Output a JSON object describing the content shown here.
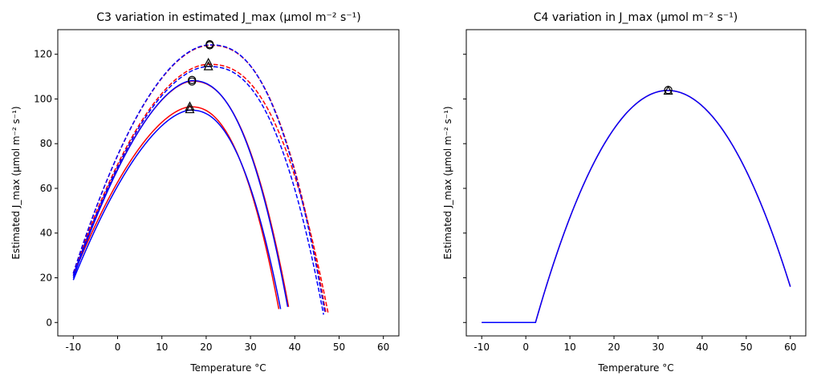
{
  "figure": {
    "left_panel_title": "C3 variation in estimated J_max  (µmol m⁻² s⁻¹)",
    "right_panel_title": "C4 variation in J_max  (µmol m⁻² s⁻¹)"
  },
  "chart_data": [
    {
      "type": "line",
      "title": "C3 variation in estimated J_max  (µmol m⁻² s⁻¹)",
      "xlabel": "Temperature °C",
      "ylabel": "Estimated J_max  (µmol m⁻² s⁻¹)",
      "xlim": [
        -13.5,
        63.5
      ],
      "ylim": [
        -6,
        131
      ],
      "xticks": [
        -10,
        0,
        10,
        20,
        30,
        40,
        50,
        60
      ],
      "yticks": [
        0,
        20,
        40,
        60,
        80,
        100,
        120
      ],
      "grid": false,
      "series": [
        {
          "color": "#ff0000",
          "dash": "solid",
          "peak": [
            16.5,
            96.5
          ],
          "x_start": -10,
          "x_end": 36.4,
          "y_start": 21,
          "y_end": 6,
          "exp": 1.7
        },
        {
          "color": "#0000ff",
          "dash": "solid",
          "peak": [
            16.5,
            95.0
          ],
          "x_start": -10,
          "x_end": 36.8,
          "y_start": 19,
          "y_end": 6,
          "exp": 1.7
        },
        {
          "color": "#ff0000",
          "dash": "solid",
          "peak": [
            16.8,
            108.0
          ],
          "x_start": -10,
          "x_end": 38.6,
          "y_start": 21,
          "y_end": 7,
          "exp": 1.7
        },
        {
          "color": "#0000ff",
          "dash": "solid",
          "peak": [
            16.8,
            108.2
          ],
          "x_start": -10,
          "x_end": 38.4,
          "y_start": 20,
          "y_end": 7,
          "exp": 1.7
        },
        {
          "color": "#ff0000",
          "dash": "dashed",
          "peak": [
            20.5,
            115.5
          ],
          "x_start": -10,
          "x_end": 47.5,
          "y_start": 22,
          "y_end": 4.5,
          "exp": 1.85
        },
        {
          "color": "#0000ff",
          "dash": "dashed",
          "peak": [
            20.5,
            114.5
          ],
          "x_start": -10,
          "x_end": 46.5,
          "y_start": 21,
          "y_end": 3.5,
          "exp": 1.85
        },
        {
          "color": "#ff0000",
          "dash": "dashed",
          "peak": [
            20.8,
            124.0
          ],
          "x_start": -10,
          "x_end": 47.0,
          "y_start": 22,
          "y_end": 4.5,
          "exp": 1.85
        },
        {
          "color": "#0000ff",
          "dash": "dashed",
          "peak": [
            20.8,
            124.2
          ],
          "x_start": -10,
          "x_end": 46.8,
          "y_start": 22,
          "y_end": 4.5,
          "exp": 1.85
        }
      ],
      "markers": [
        {
          "shape": "circle",
          "x": 20.8,
          "y": 124.5
        },
        {
          "shape": "circle",
          "x": 20.8,
          "y": 124.0
        },
        {
          "shape": "triangle",
          "x": 20.5,
          "y": 116.0
        },
        {
          "shape": "triangle",
          "x": 20.5,
          "y": 114.5
        },
        {
          "shape": "circle",
          "x": 16.8,
          "y": 108.5
        },
        {
          "shape": "circle",
          "x": 16.8,
          "y": 107.8
        },
        {
          "shape": "triangle",
          "x": 16.3,
          "y": 96.5
        },
        {
          "shape": "triangle",
          "x": 16.3,
          "y": 95.3
        }
      ]
    },
    {
      "type": "line",
      "title": "C4 variation in J_max  (µmol m⁻² s⁻¹)",
      "xlabel": "Temperature °C",
      "ylabel": "Estimated J_max  (µmol m⁻² s⁻¹)",
      "xlim": [
        -13.5,
        63.5
      ],
      "ylim": [
        -6,
        131
      ],
      "xticks": [
        -10,
        0,
        10,
        20,
        30,
        40,
        50,
        60
      ],
      "yticks": [
        0,
        20,
        40,
        60,
        80,
        100,
        120
      ],
      "ytick_labels_shown": false,
      "grid": false,
      "series": [
        {
          "color": "#ff0000",
          "dash": "solid",
          "flat_until": 2.2,
          "peak": [
            32.2,
            103.8
          ],
          "x_start": -10,
          "x_end": 60,
          "y_end": 16
        },
        {
          "color": "#0000ff",
          "dash": "solid",
          "flat_until": 2.2,
          "peak": [
            32.2,
            103.8
          ],
          "x_start": -10,
          "x_end": 60,
          "y_end": 16
        }
      ],
      "markers": [
        {
          "shape": "circle",
          "x": 32.3,
          "y": 104.0
        },
        {
          "shape": "triangle",
          "x": 32.3,
          "y": 103.6
        }
      ]
    }
  ]
}
